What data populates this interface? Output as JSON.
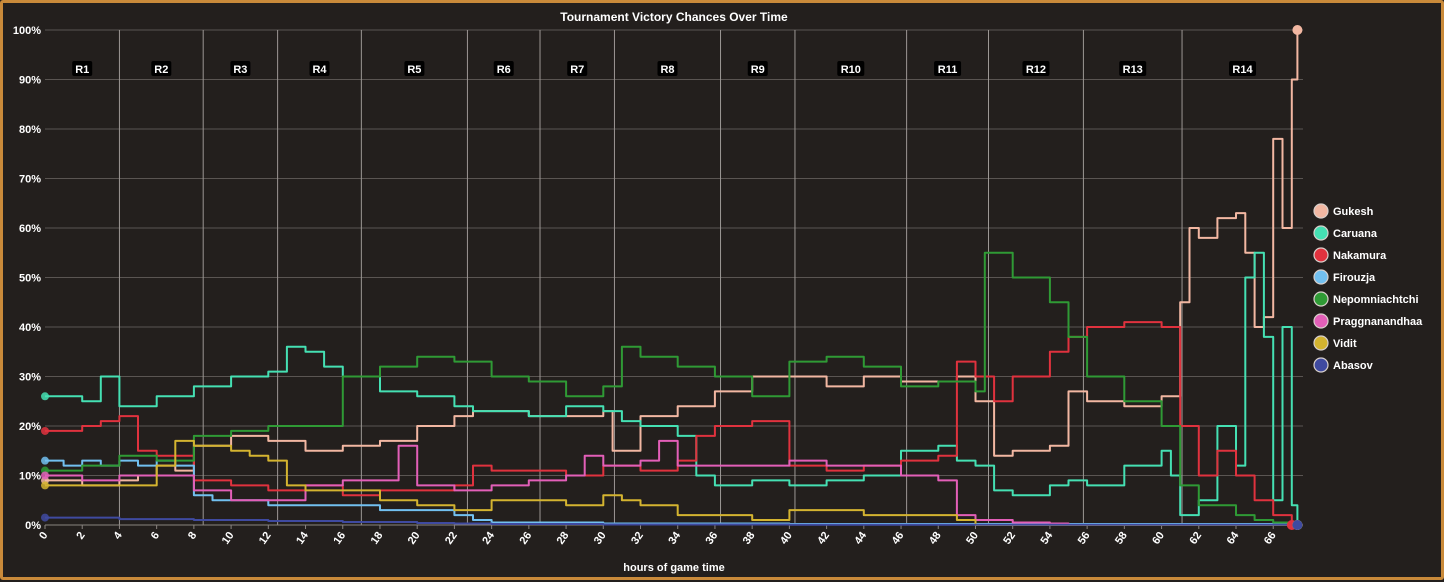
{
  "chart_data": {
    "type": "line",
    "title": "Tournament Victory Chances Over Time",
    "xlabel": "hours of game time",
    "ylabel": "",
    "xlim": [
      0,
      67.6
    ],
    "ylim": [
      0,
      100
    ],
    "x_ticks": [
      0,
      2,
      4,
      6,
      8,
      10,
      12,
      14,
      16,
      18,
      20,
      22,
      24,
      26,
      28,
      30,
      32,
      34,
      36,
      38,
      40,
      42,
      44,
      46,
      48,
      50,
      52,
      54,
      56,
      58,
      60,
      62,
      64,
      66
    ],
    "y_ticks": [
      0,
      10,
      20,
      30,
      40,
      50,
      60,
      70,
      80,
      90,
      100
    ],
    "y_tick_suffix": "%",
    "rounds": [
      {
        "label": "R1",
        "start": 0,
        "end": 4
      },
      {
        "label": "R2",
        "start": 4,
        "end": 8.5
      },
      {
        "label": "R3",
        "start": 8.5,
        "end": 12.5
      },
      {
        "label": "R4",
        "start": 12.5,
        "end": 17
      },
      {
        "label": "R5",
        "start": 17,
        "end": 22.7
      },
      {
        "label": "R6",
        "start": 22.7,
        "end": 26.6
      },
      {
        "label": "R7",
        "start": 26.6,
        "end": 30.6
      },
      {
        "label": "R8",
        "start": 30.6,
        "end": 36.3
      },
      {
        "label": "R9",
        "start": 36.3,
        "end": 40.3
      },
      {
        "label": "R10",
        "start": 40.3,
        "end": 46.3
      },
      {
        "label": "R11",
        "start": 46.3,
        "end": 50.7
      },
      {
        "label": "R12",
        "start": 50.7,
        "end": 55.8
      },
      {
        "label": "R13",
        "start": 55.8,
        "end": 61.1
      },
      {
        "label": "R14",
        "start": 61.1,
        "end": 67.6
      }
    ],
    "series": [
      {
        "name": "Gukesh",
        "color": "#f2b7a2",
        "x": [
          0,
          2,
          4,
          5,
          6,
          7,
          8,
          10,
          12,
          14,
          16,
          18,
          20,
          22,
          23,
          24,
          26,
          28,
          30,
          30.5,
          32,
          34,
          36,
          38,
          40,
          42,
          44,
          46,
          48,
          49,
          50,
          51,
          52,
          54,
          55,
          56,
          58,
          60,
          61,
          61.5,
          62,
          63,
          64,
          64.5,
          65,
          65.5,
          66,
          66.5,
          67,
          67.3
        ],
        "values": [
          9,
          8,
          9,
          10,
          12,
          11,
          16,
          18,
          17,
          15,
          16,
          17,
          20,
          22,
          23,
          23,
          22,
          22,
          23,
          15,
          22,
          24,
          27,
          30,
          30,
          28,
          30,
          29,
          29,
          30,
          25,
          14,
          15,
          16,
          27,
          25,
          24,
          26,
          45,
          60,
          58,
          62,
          63,
          55,
          40,
          42,
          78,
          60,
          90,
          100
        ]
      },
      {
        "name": "Caruana",
        "color": "#45e0b3",
        "x": [
          0,
          2,
          3,
          4,
          6,
          8,
          10,
          12,
          13,
          14,
          15,
          16,
          18,
          20,
          22,
          23,
          24,
          26,
          28,
          30,
          31,
          32,
          34,
          35,
          36,
          38,
          40,
          42,
          44,
          46,
          48,
          49,
          50,
          51,
          52,
          54,
          55,
          56,
          58,
          60,
          60.5,
          61,
          62,
          63,
          64,
          64.5,
          65,
          65.5,
          66,
          66.5,
          67,
          67.3
        ],
        "values": [
          26,
          25,
          30,
          24,
          26,
          28,
          30,
          31,
          36,
          35,
          32,
          30,
          27,
          26,
          24,
          23,
          23,
          22,
          24,
          23,
          21,
          20,
          18,
          10,
          8,
          9,
          8,
          9,
          10,
          15,
          16,
          13,
          12,
          7,
          6,
          8,
          9,
          8,
          12,
          15,
          10,
          2,
          5,
          20,
          12,
          50,
          55,
          38,
          5,
          40,
          4,
          0
        ]
      },
      {
        "name": "Nakamura",
        "color": "#e0323e",
        "x": [
          0,
          2,
          3,
          4,
          5,
          6,
          8,
          10,
          12,
          14,
          16,
          18,
          20,
          22,
          23,
          24,
          26,
          28,
          30,
          32,
          34,
          35,
          36,
          38,
          40,
          42,
          44,
          46,
          48,
          49,
          50,
          51,
          52,
          54,
          55,
          56,
          58,
          60,
          61,
          62,
          63,
          64,
          65,
          66,
          67
        ],
        "values": [
          19,
          20,
          21,
          22,
          15,
          14,
          9,
          8,
          7,
          8,
          6,
          7,
          7,
          8,
          12,
          11,
          11,
          10,
          12,
          11,
          13,
          18,
          20,
          21,
          12,
          11,
          12,
          13,
          14,
          33,
          30,
          25,
          30,
          35,
          38,
          40,
          41,
          40,
          20,
          10,
          15,
          10,
          5,
          2,
          0
        ]
      },
      {
        "name": "Firouzja",
        "color": "#72c0f0",
        "x": [
          0,
          1,
          2,
          3,
          4,
          5,
          6,
          7,
          8,
          9,
          10,
          12,
          14,
          16,
          18,
          20,
          22,
          23,
          24,
          30,
          40,
          67.3
        ],
        "values": [
          13,
          12,
          13,
          12,
          13,
          12,
          13,
          12,
          6,
          5,
          5,
          4,
          4,
          4,
          3,
          3,
          2,
          1,
          0.5,
          0.3,
          0.2,
          0
        ]
      },
      {
        "name": "Nepomniachtchi",
        "color": "#2f9a35",
        "x": [
          0,
          2,
          4,
          6,
          8,
          10,
          12,
          14,
          16,
          18,
          20,
          22,
          24,
          26,
          28,
          30,
          31,
          32,
          34,
          36,
          38,
          40,
          42,
          44,
          46,
          48,
          50,
          50.5,
          52,
          54,
          55,
          56,
          58,
          60,
          61,
          62,
          64,
          65,
          66,
          67.3
        ],
        "values": [
          11,
          12,
          14,
          13,
          18,
          19,
          20,
          20,
          30,
          32,
          34,
          33,
          30,
          29,
          26,
          28,
          36,
          34,
          32,
          30,
          26,
          33,
          34,
          32,
          28,
          29,
          27,
          55,
          50,
          45,
          38,
          30,
          25,
          20,
          8,
          4,
          2,
          1,
          0.5,
          0
        ]
      },
      {
        "name": "Praggnanandhaa",
        "color": "#e35fb8",
        "x": [
          0,
          2,
          4,
          6,
          8,
          10,
          12,
          14,
          16,
          18,
          19,
          20,
          22,
          24,
          26,
          28,
          29,
          30,
          32,
          33,
          34,
          36,
          38,
          40,
          42,
          44,
          46,
          48,
          49,
          50,
          52,
          54,
          55,
          67.3
        ],
        "values": [
          10,
          9,
          10,
          10,
          7,
          5,
          5,
          8,
          9,
          9,
          16,
          8,
          7,
          8,
          9,
          10,
          14,
          12,
          13,
          17,
          12,
          12,
          12,
          13,
          12,
          12,
          10,
          9,
          2,
          1,
          0.5,
          0.3,
          0,
          0
        ]
      },
      {
        "name": "Vidit",
        "color": "#d4b430",
        "x": [
          0,
          2,
          4,
          6,
          7,
          8,
          10,
          11,
          12,
          13,
          14,
          16,
          18,
          20,
          22,
          23,
          24,
          26,
          28,
          30,
          31,
          32,
          34,
          36,
          38,
          40,
          42,
          44,
          46,
          48,
          49,
          50,
          67.3
        ],
        "values": [
          8,
          8,
          8,
          12,
          17,
          16,
          15,
          14,
          13,
          8,
          7,
          7,
          5,
          4,
          3,
          3,
          5,
          5,
          4,
          6,
          5,
          4,
          2,
          2,
          1,
          3,
          3,
          2,
          2,
          2,
          1,
          0,
          0
        ]
      },
      {
        "name": "Abasov",
        "color": "#3f4aa0",
        "x": [
          0,
          4,
          8,
          12,
          16,
          20,
          22,
          24,
          30,
          40,
          67.3
        ],
        "values": [
          1.5,
          1.2,
          1,
          0.8,
          0.6,
          0.4,
          0.3,
          0.2,
          0.1,
          0.05,
          0
        ]
      }
    ]
  }
}
